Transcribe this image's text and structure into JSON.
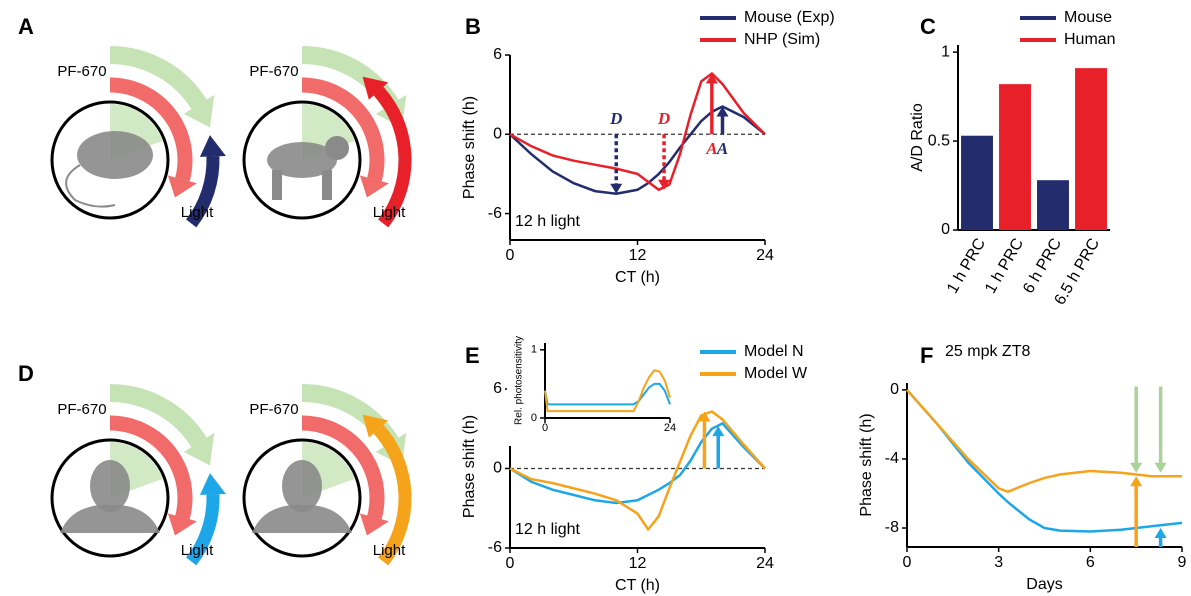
{
  "panel_labels": [
    "A",
    "B",
    "C",
    "D",
    "E",
    "F"
  ],
  "diagrams": [
    {
      "drug": "PF-670",
      "light": "Light"
    },
    {
      "drug": "PF-670",
      "light": "Light"
    },
    {
      "drug": "PF-670",
      "light": "Light"
    },
    {
      "drug": "PF-670",
      "light": "Light"
    }
  ],
  "chart_data": [
    {
      "type": "line",
      "xlabel": "CT (h)",
      "ylabel": "Phase shift (h)",
      "note": "12 h light",
      "x": [
        0,
        2,
        4,
        6,
        8,
        10,
        12,
        13,
        14,
        15,
        16,
        17,
        18,
        19,
        20,
        22,
        24
      ],
      "series": [
        {
          "name": "Mouse (Exp)",
          "color": "#232d6e",
          "values": [
            0,
            -1.5,
            -2.8,
            -3.7,
            -4.3,
            -4.5,
            -4.2,
            -3.7,
            -3,
            -2.1,
            -1,
            0,
            1,
            1.7,
            2.1,
            1.3,
            0
          ]
        },
        {
          "name": "NHP (Sim)",
          "color": "#e8202a",
          "values": [
            0,
            -0.9,
            -1.6,
            -2.0,
            -2.3,
            -2.6,
            -3.0,
            -3.6,
            -4.2,
            -3.8,
            -1.5,
            1.5,
            4.0,
            4.6,
            3.8,
            1.6,
            0
          ]
        }
      ],
      "xlim": [
        0,
        24
      ],
      "xticks": [
        0,
        12,
        24
      ],
      "ylim": [
        -8,
        6
      ],
      "yticks": [
        -6,
        0,
        6
      ],
      "zero_line": true,
      "legend": "upper right",
      "annotations": [
        {
          "text": "D",
          "x": 10,
          "y0": 0,
          "y": -4.5,
          "color": "#232d6e",
          "style": "dashed"
        },
        {
          "text": "D",
          "x": 14.5,
          "y0": 0,
          "y": -4.2,
          "color": "#e8202a",
          "style": "dashed"
        },
        {
          "text": "A",
          "x": 19,
          "y0": 0,
          "y": 4.6,
          "color": "#e8202a",
          "style": "solid"
        },
        {
          "text": "A",
          "x": 20,
          "y0": 0,
          "y": 2.1,
          "color": "#232d6e",
          "style": "solid"
        }
      ]
    },
    {
      "type": "bar",
      "ylabel": "A/D Ratio",
      "categories": [
        "1 h PRC",
        "1 h PRC",
        "6 h PRC",
        "6.5 h PRC"
      ],
      "series": [
        {
          "name": "Mouse",
          "color": "#232d6e",
          "values": [
            0.53,
            null,
            0.28,
            null
          ]
        },
        {
          "name": "Human",
          "color": "#e8202a",
          "values": [
            null,
            0.82,
            null,
            0.91
          ]
        }
      ],
      "ylim": [
        0,
        1.04
      ],
      "yticks": [
        0,
        0.5,
        1
      ],
      "legend": "upper right"
    },
    {
      "type": "line",
      "xlabel": "CT (h)",
      "ylabel": "Phase shift (h)",
      "note": "12 h light",
      "x": [
        0,
        2,
        4,
        6,
        8,
        10,
        12,
        13,
        14,
        15,
        16,
        17,
        18,
        19,
        20,
        22,
        24
      ],
      "series": [
        {
          "name": "Model N",
          "color": "#1ea7e8",
          "values": [
            0,
            -1.0,
            -1.6,
            -2.0,
            -2.4,
            -2.6,
            -2.4,
            -2.0,
            -1.6,
            -1.1,
            -0.5,
            0.6,
            2.0,
            3.0,
            3.4,
            1.6,
            0
          ]
        },
        {
          "name": "Model W",
          "color": "#f5a31a",
          "values": [
            0,
            -0.8,
            -1.1,
            -1.5,
            -1.9,
            -2.4,
            -3.4,
            -4.6,
            -3.6,
            -1.5,
            0.5,
            2.5,
            4.0,
            4.3,
            3.7,
            1.8,
            0
          ]
        }
      ],
      "xlim": [
        0,
        24
      ],
      "xticks": [
        0,
        12,
        24
      ],
      "ylim": [
        -6,
        6.3
      ],
      "yticks": [
        -6,
        0,
        6
      ],
      "zero_line": true,
      "legend": "upper right",
      "annotations": [
        {
          "x": 18.3,
          "y0": 0,
          "y": 4.3,
          "color": "#f5a31a",
          "style": "solid"
        },
        {
          "x": 19.6,
          "y0": 0,
          "y": 3.2,
          "color": "#1ea7e8",
          "style": "solid"
        }
      ]
    },
    {
      "type": "line",
      "ylabel": "Rel. photosensitivity",
      "x": [
        0,
        0.5,
        1,
        17,
        18,
        19,
        20,
        21,
        22,
        23,
        24
      ],
      "series": [
        {
          "color": "#1ea7e8",
          "values": [
            0.4,
            0.2,
            0.2,
            0.2,
            0.25,
            0.35,
            0.45,
            0.5,
            0.5,
            0.4,
            0.2
          ]
        },
        {
          "color": "#f5a31a",
          "values": [
            0.4,
            0.1,
            0.1,
            0.1,
            0.25,
            0.45,
            0.6,
            0.7,
            0.68,
            0.55,
            0.3
          ]
        }
      ],
      "xlim": [
        0,
        24
      ],
      "xticks": [
        0,
        24
      ],
      "ylim": [
        0,
        1.1
      ],
      "yticks": [
        0,
        1
      ]
    },
    {
      "type": "line",
      "title": "25 mpk ZT8",
      "xlabel": "Days",
      "ylabel": "Phase shift (h)",
      "x": [
        0,
        1,
        2,
        3,
        3.3,
        4,
        4.5,
        5,
        6,
        7,
        8,
        9
      ],
      "series": [
        {
          "color": "#1ea7e8",
          "values": [
            0,
            -2,
            -4.2,
            -6,
            -6.5,
            -7.5,
            -8.0,
            -8.15,
            -8.2,
            -8.1,
            -7.9,
            -7.7
          ]
        },
        {
          "color": "#f5a31a",
          "values": [
            0,
            -2,
            -4.0,
            -5.7,
            -5.9,
            -5.4,
            -5.1,
            -4.9,
            -4.7,
            -4.8,
            -5.0,
            -5.0
          ]
        }
      ],
      "xlim": [
        0,
        9
      ],
      "xticks": [
        0,
        3,
        6,
        9
      ],
      "ylim": [
        -9.1,
        0.4
      ],
      "yticks": [
        -8,
        -4,
        0
      ],
      "annotations": [
        {
          "x": 7.5,
          "y0": 0.2,
          "y": -4.8,
          "color": "#a9d398",
          "style": "solid"
        },
        {
          "x": 8.3,
          "y0": 0.2,
          "y": -4.8,
          "color": "#a9d398",
          "style": "solid"
        },
        {
          "x": 7.5,
          "y0": -9.1,
          "y": -5.0,
          "color": "#f5a31a",
          "style": "solid"
        },
        {
          "x": 8.3,
          "y0": -9.1,
          "y": -8.0,
          "color": "#1ea7e8",
          "style": "solid"
        }
      ]
    }
  ]
}
